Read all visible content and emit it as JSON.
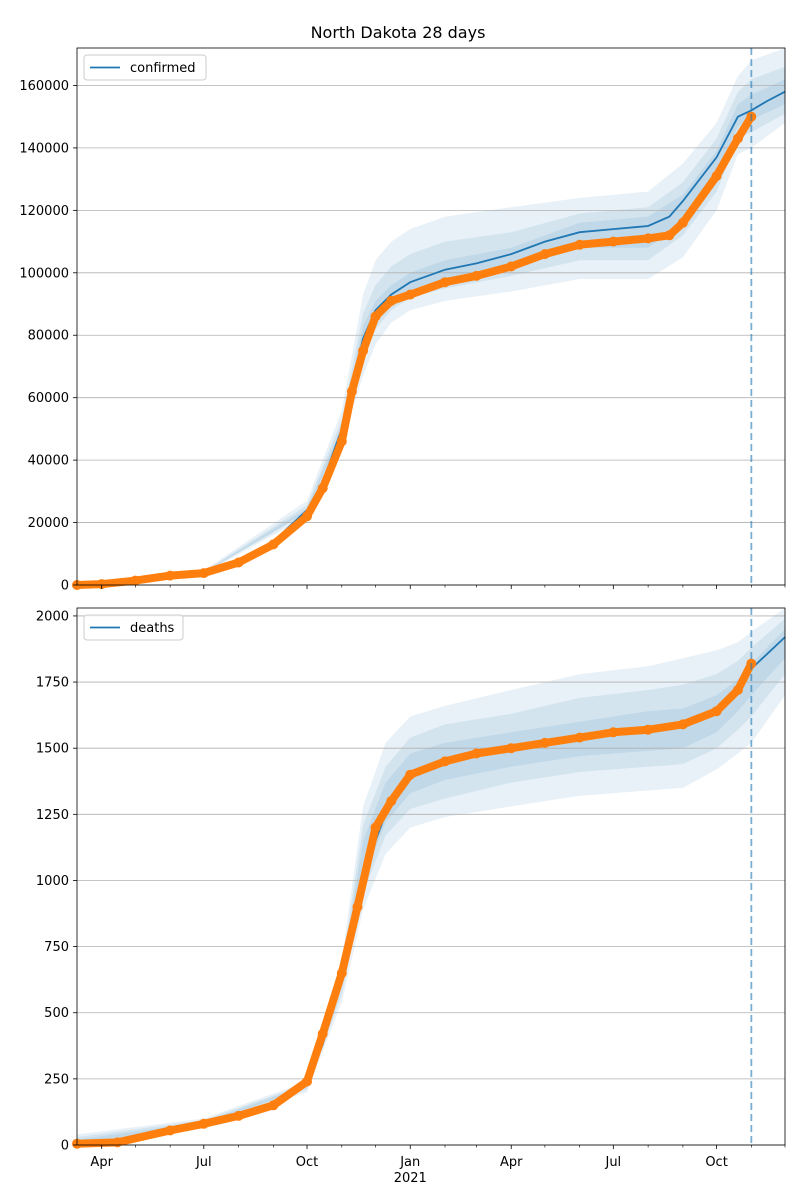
{
  "chart_data": [
    {
      "type": "line",
      "title": "North Dakota 28 days",
      "xlabel": "",
      "ylabel": "",
      "x_axis": {
        "start": "2020-03-10",
        "end": "2021-12-01",
        "ticks": [
          {
            "date": "2020-04-01",
            "label": "Apr"
          },
          {
            "date": "2020-07-01",
            "label": "Jul"
          },
          {
            "date": "2020-10-01",
            "label": "Oct"
          },
          {
            "date": "2021-01-01",
            "label": "Jan",
            "sublabel": "2021"
          },
          {
            "date": "2021-04-01",
            "label": "Apr"
          },
          {
            "date": "2021-07-01",
            "label": "Jul"
          },
          {
            "date": "2021-10-01",
            "label": "Oct"
          }
        ],
        "minor_ticks": [
          "2020-05-01",
          "2020-06-01",
          "2020-08-01",
          "2020-09-01",
          "2020-11-01",
          "2020-12-01",
          "2021-02-01",
          "2021-03-01",
          "2021-05-01",
          "2021-06-01",
          "2021-08-01",
          "2021-09-01",
          "2021-11-01",
          "2021-12-01"
        ]
      },
      "ylim": [
        0,
        172000
      ],
      "yticks": [
        0,
        20000,
        40000,
        60000,
        80000,
        100000,
        120000,
        140000,
        160000
      ],
      "grid": "horizontal",
      "legend": "top-left",
      "forecast_start": "2021-11-01",
      "colors": {
        "model": "#1f77b4",
        "observed": "#ff7f0e",
        "band": "#1f77b4"
      },
      "series": [
        {
          "name": "confirmed",
          "kind": "model",
          "x": [
            "2020-03-10",
            "2020-04-01",
            "2020-05-01",
            "2020-06-01",
            "2020-07-01",
            "2020-08-01",
            "2020-09-01",
            "2020-10-01",
            "2020-10-15",
            "2020-11-01",
            "2020-11-10",
            "2020-11-20",
            "2020-12-01",
            "2020-12-15",
            "2021-01-01",
            "2021-02-01",
            "2021-03-01",
            "2021-04-01",
            "2021-05-01",
            "2021-06-01",
            "2021-07-01",
            "2021-08-01",
            "2021-08-20",
            "2021-09-01",
            "2021-10-01",
            "2021-10-20",
            "2021-11-01",
            "2021-11-15",
            "2021-12-01"
          ],
          "y": [
            0,
            300,
            1400,
            3000,
            4000,
            8000,
            14000,
            24000,
            33000,
            50000,
            64000,
            79000,
            88000,
            93000,
            97000,
            101000,
            103000,
            106000,
            110000,
            113000,
            114000,
            115000,
            118000,
            123000,
            137000,
            150000,
            152000,
            155000,
            158000
          ]
        },
        {
          "name": "",
          "kind": "observed",
          "x": [
            "2020-03-10",
            "2020-04-01",
            "2020-05-01",
            "2020-06-01",
            "2020-07-01",
            "2020-08-01",
            "2020-09-01",
            "2020-10-01",
            "2020-10-15",
            "2020-11-01",
            "2020-11-10",
            "2020-11-20",
            "2020-12-01",
            "2020-12-15",
            "2021-01-01",
            "2021-02-01",
            "2021-03-01",
            "2021-04-01",
            "2021-05-01",
            "2021-06-01",
            "2021-07-01",
            "2021-08-01",
            "2021-08-20",
            "2021-09-01",
            "2021-10-01",
            "2021-10-20",
            "2021-11-01"
          ],
          "y": [
            0,
            300,
            1400,
            3000,
            3800,
            7200,
            13000,
            22000,
            31000,
            46000,
            62000,
            75000,
            86000,
            91000,
            93000,
            97000,
            99000,
            102000,
            106000,
            109000,
            110000,
            111000,
            112000,
            116000,
            131000,
            143000,
            150000
          ]
        }
      ],
      "bands": [
        {
          "x": [
            "2020-03-10",
            "2020-07-01",
            "2020-10-01",
            "2020-11-01",
            "2020-11-20",
            "2020-12-01",
            "2020-12-15",
            "2021-01-01",
            "2021-02-01",
            "2021-04-01",
            "2021-06-01",
            "2021-08-01",
            "2021-09-01",
            "2021-10-01",
            "2021-10-20",
            "2021-11-01",
            "2021-12-01"
          ],
          "lower": [
            0,
            3600,
            22000,
            46000,
            67000,
            77000,
            84000,
            88000,
            91000,
            94000,
            98000,
            98000,
            105000,
            120000,
            138000,
            140000,
            148000
          ],
          "upper": [
            0,
            4600,
            27000,
            56000,
            93000,
            104000,
            110000,
            114000,
            118000,
            121000,
            124000,
            126000,
            135000,
            148000,
            163000,
            168000,
            172000
          ]
        },
        {
          "x": [
            "2020-03-10",
            "2020-07-01",
            "2020-10-01",
            "2020-11-01",
            "2020-11-20",
            "2020-12-01",
            "2020-12-15",
            "2021-01-01",
            "2021-02-01",
            "2021-04-01",
            "2021-06-01",
            "2021-08-01",
            "2021-09-01",
            "2021-10-01",
            "2021-10-20",
            "2021-11-01",
            "2021-12-01"
          ],
          "lower": [
            0,
            3800,
            23000,
            48000,
            72000,
            82000,
            88000,
            92000,
            95000,
            99000,
            104000,
            104000,
            112000,
            126000,
            143000,
            145000,
            151000
          ],
          "upper": [
            0,
            4300,
            25500,
            53000,
            87000,
            96000,
            102000,
            106000,
            110000,
            113000,
            119000,
            121000,
            129000,
            143000,
            158000,
            162000,
            166000
          ]
        },
        {
          "x": [
            "2020-03-10",
            "2020-07-01",
            "2020-10-01",
            "2020-11-01",
            "2020-11-20",
            "2020-12-01",
            "2020-12-15",
            "2021-01-01",
            "2021-02-01",
            "2021-04-01",
            "2021-06-01",
            "2021-08-01",
            "2021-09-01",
            "2021-10-01",
            "2021-10-20",
            "2021-11-01",
            "2021-12-01"
          ],
          "lower": [
            0,
            3900,
            23500,
            49000,
            75000,
            85000,
            90000,
            94000,
            98000,
            102000,
            108000,
            108000,
            116000,
            131000,
            147000,
            149000,
            154000
          ],
          "upper": [
            0,
            4100,
            24500,
            51000,
            83000,
            91000,
            96000,
            100000,
            104000,
            108000,
            116000,
            118000,
            125000,
            139000,
            154000,
            157000,
            162000
          ]
        }
      ]
    },
    {
      "type": "line",
      "title": "",
      "xlabel": "",
      "ylabel": "",
      "x_axis": {
        "start": "2020-03-10",
        "end": "2021-12-01",
        "ticks": [
          {
            "date": "2020-04-01",
            "label": "Apr"
          },
          {
            "date": "2020-07-01",
            "label": "Jul"
          },
          {
            "date": "2020-10-01",
            "label": "Oct"
          },
          {
            "date": "2021-01-01",
            "label": "Jan",
            "sublabel": "2021"
          },
          {
            "date": "2021-04-01",
            "label": "Apr"
          },
          {
            "date": "2021-07-01",
            "label": "Jul"
          },
          {
            "date": "2021-10-01",
            "label": "Oct"
          }
        ],
        "minor_ticks": [
          "2020-05-01",
          "2020-06-01",
          "2020-08-01",
          "2020-09-01",
          "2020-11-01",
          "2020-12-01",
          "2021-02-01",
          "2021-03-01",
          "2021-05-01",
          "2021-06-01",
          "2021-08-01",
          "2021-09-01",
          "2021-11-01",
          "2021-12-01"
        ]
      },
      "ylim": [
        0,
        2030
      ],
      "yticks": [
        0,
        250,
        500,
        750,
        1000,
        1250,
        1500,
        1750,
        2000
      ],
      "grid": "horizontal",
      "legend": "top-left",
      "forecast_start": "2021-11-01",
      "colors": {
        "model": "#1f77b4",
        "observed": "#ff7f0e",
        "band": "#1f77b4"
      },
      "series": [
        {
          "name": "deaths",
          "kind": "model",
          "x": [
            "2020-03-10",
            "2020-04-15",
            "2020-06-01",
            "2020-07-01",
            "2020-08-01",
            "2020-09-01",
            "2020-10-01",
            "2020-10-15",
            "2020-11-01",
            "2020-11-15",
            "2020-12-01",
            "2020-12-15",
            "2021-01-01",
            "2021-02-01",
            "2021-03-01",
            "2021-04-01",
            "2021-05-01",
            "2021-06-01",
            "2021-07-01",
            "2021-08-01",
            "2021-09-01",
            "2021-10-01",
            "2021-10-20",
            "2021-11-01",
            "2021-12-01"
          ],
          "y": [
            0,
            10,
            55,
            80,
            110,
            150,
            230,
            380,
            620,
            860,
            1150,
            1310,
            1410,
            1460,
            1480,
            1495,
            1520,
            1545,
            1560,
            1570,
            1595,
            1640,
            1720,
            1800,
            1920
          ]
        },
        {
          "name": "",
          "kind": "observed",
          "x": [
            "2020-03-10",
            "2020-04-15",
            "2020-06-01",
            "2020-07-01",
            "2020-08-01",
            "2020-09-01",
            "2020-10-01",
            "2020-10-15",
            "2020-11-01",
            "2020-11-15",
            "2020-12-01",
            "2020-12-15",
            "2021-01-01",
            "2021-02-01",
            "2021-03-01",
            "2021-04-01",
            "2021-05-01",
            "2021-06-01",
            "2021-07-01",
            "2021-08-01",
            "2021-09-01",
            "2021-10-01",
            "2021-10-20",
            "2021-11-01"
          ],
          "y": [
            5,
            10,
            55,
            80,
            110,
            150,
            240,
            420,
            650,
            900,
            1200,
            1300,
            1400,
            1450,
            1480,
            1500,
            1520,
            1540,
            1560,
            1570,
            1590,
            1640,
            1720,
            1820
          ]
        }
      ],
      "bands": [
        {
          "x": [
            "2020-03-10",
            "2020-07-01",
            "2020-10-01",
            "2020-11-01",
            "2020-11-20",
            "2020-12-10",
            "2021-01-01",
            "2021-02-01",
            "2021-04-01",
            "2021-06-01",
            "2021-08-01",
            "2021-09-01",
            "2021-10-01",
            "2021-10-20",
            "2021-11-01",
            "2021-12-01"
          ],
          "lower": [
            0,
            70,
            200,
            540,
            890,
            1100,
            1200,
            1240,
            1280,
            1320,
            1340,
            1350,
            1420,
            1480,
            1520,
            1700
          ],
          "upper": [
            40,
            100,
            240,
            700,
            1280,
            1520,
            1620,
            1660,
            1720,
            1780,
            1810,
            1840,
            1870,
            1900,
            1940,
            2030
          ]
        },
        {
          "x": [
            "2020-03-10",
            "2020-07-01",
            "2020-10-01",
            "2020-11-01",
            "2020-11-20",
            "2020-12-10",
            "2021-01-01",
            "2021-02-01",
            "2021-04-01",
            "2021-06-01",
            "2021-08-01",
            "2021-09-01",
            "2021-10-01",
            "2021-10-20",
            "2021-11-01",
            "2021-12-01"
          ],
          "lower": [
            0,
            74,
            210,
            570,
            950,
            1170,
            1270,
            1310,
            1370,
            1410,
            1430,
            1440,
            1500,
            1570,
            1620,
            1780
          ],
          "upper": [
            30,
            94,
            232,
            670,
            1210,
            1430,
            1540,
            1590,
            1630,
            1690,
            1720,
            1740,
            1780,
            1830,
            1880,
            1990
          ]
        },
        {
          "x": [
            "2020-03-10",
            "2020-07-01",
            "2020-10-01",
            "2020-11-01",
            "2020-11-20",
            "2020-12-10",
            "2021-01-01",
            "2021-02-01",
            "2021-04-01",
            "2021-06-01",
            "2021-08-01",
            "2021-09-01",
            "2021-10-01",
            "2021-10-20",
            "2021-11-01",
            "2021-12-01"
          ],
          "lower": [
            0,
            77,
            218,
            600,
            1000,
            1220,
            1330,
            1380,
            1430,
            1470,
            1490,
            1500,
            1560,
            1640,
            1700,
            1840
          ],
          "upper": [
            20,
            88,
            226,
            650,
            1150,
            1370,
            1480,
            1520,
            1560,
            1600,
            1640,
            1650,
            1700,
            1760,
            1820,
            1950
          ]
        }
      ]
    }
  ]
}
